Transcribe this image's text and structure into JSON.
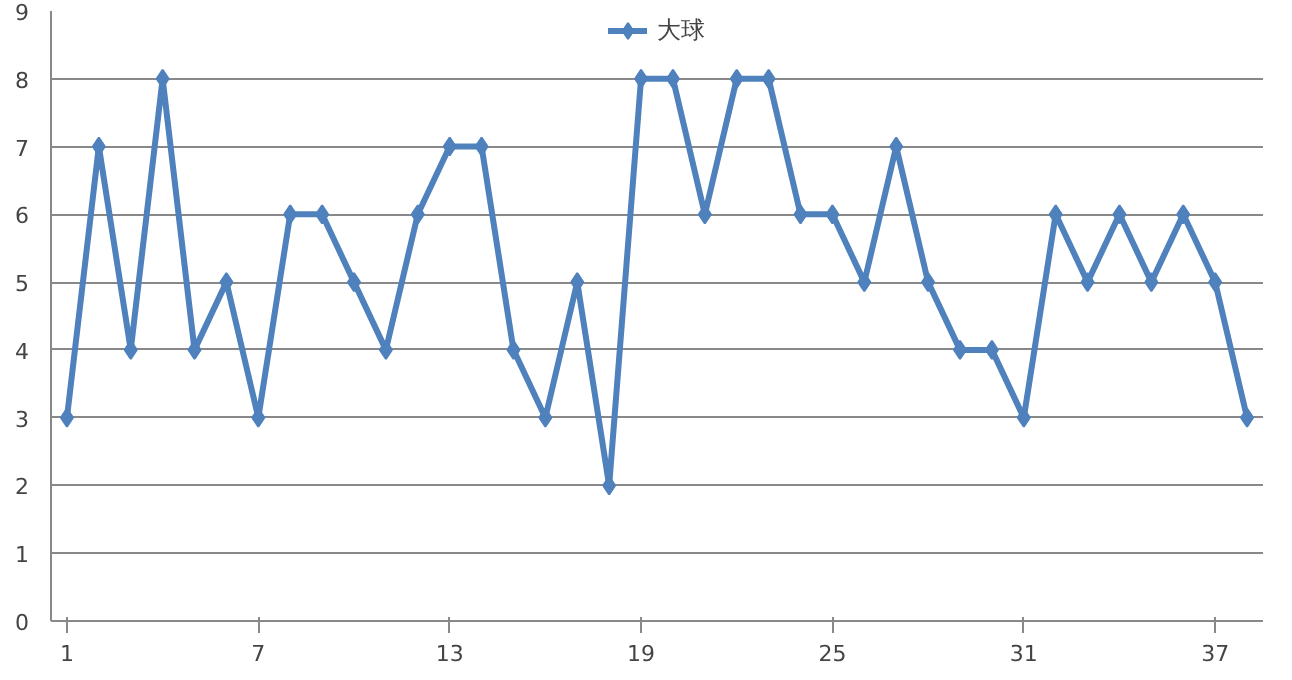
{
  "chart_data": {
    "type": "line",
    "x": [
      1,
      2,
      3,
      4,
      5,
      6,
      7,
      8,
      9,
      10,
      11,
      12,
      13,
      14,
      15,
      16,
      17,
      18,
      19,
      20,
      21,
      22,
      23,
      24,
      25,
      26,
      27,
      28,
      29,
      30,
      31,
      32,
      33,
      34,
      35,
      36,
      37,
      38
    ],
    "series": [
      {
        "name": "大球",
        "color": "#4f81bd",
        "values": [
          3,
          7,
          4,
          8,
          4,
          5,
          3,
          6,
          6,
          5,
          4,
          6,
          7,
          7,
          4,
          3,
          5,
          2,
          8,
          8,
          6,
          8,
          8,
          6,
          6,
          5,
          7,
          5,
          4,
          4,
          3,
          6,
          5,
          6,
          5,
          6,
          5,
          3
        ]
      }
    ],
    "xlim": [
      0.5,
      38.5
    ],
    "xticks": [
      1,
      7,
      13,
      19,
      25,
      31,
      37
    ],
    "ylim": [
      0,
      9
    ],
    "yticks": [
      0,
      1,
      2,
      3,
      4,
      5,
      6,
      7,
      8,
      9
    ],
    "grid": "y",
    "legend": "top",
    "marker": "diamond",
    "line_style": "solid"
  }
}
